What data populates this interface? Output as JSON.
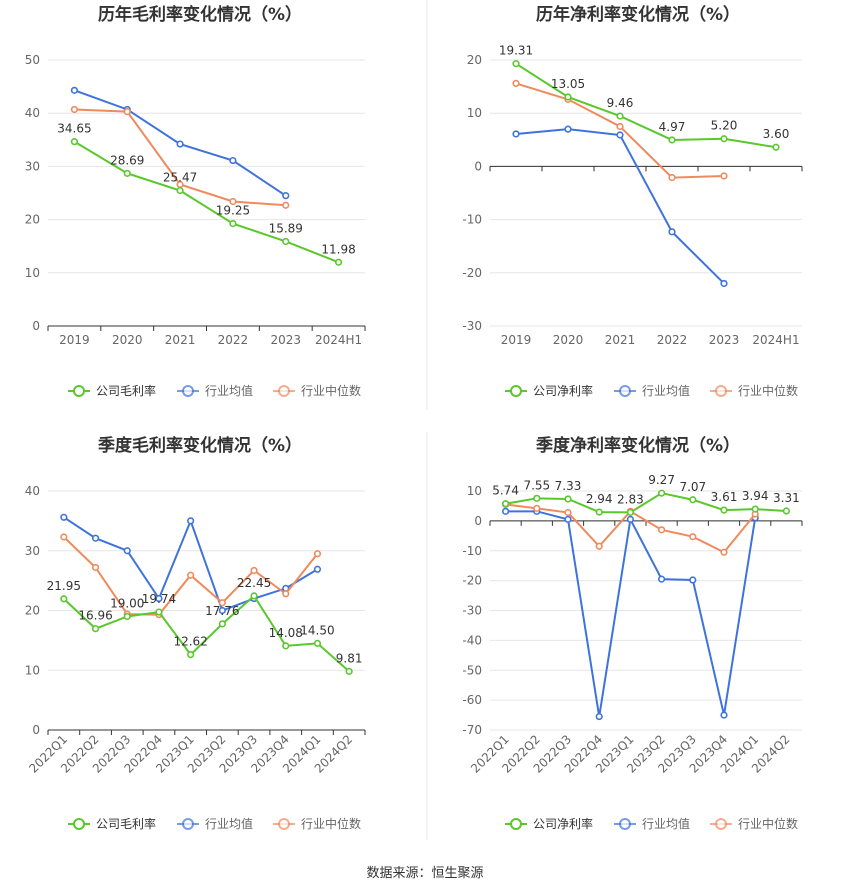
{
  "colors": {
    "company": "#5ac72b",
    "industry_avg": "#3e73dd",
    "industry_median": "#f08a5d",
    "grid": "#e6e6e6",
    "axis": "#333333",
    "divider": "#e8e8e8"
  },
  "source": "数据来源：恒生聚源",
  "chart_data": [
    {
      "type": "line",
      "title": "历年毛利率变化情况（%）",
      "categories": [
        "2019",
        "2020",
        "2021",
        "2022",
        "2023",
        "2024H1"
      ],
      "ylim": [
        0,
        50
      ],
      "yticks": [
        0,
        10,
        20,
        30,
        40,
        50
      ],
      "grid": true,
      "legend_position": "bottom",
      "series": [
        {
          "name": "公司毛利率",
          "role": "company",
          "values": [
            34.65,
            28.69,
            25.47,
            19.25,
            15.89,
            11.98
          ],
          "labels": [
            "34.65",
            "28.69",
            "25.47",
            "19.25",
            "15.89",
            "11.98"
          ]
        },
        {
          "name": "行业均值",
          "role": "industry_avg",
          "values": [
            44.3,
            40.7,
            34.2,
            31.1,
            24.5,
            null
          ]
        },
        {
          "name": "行业中位数",
          "role": "industry_median",
          "values": [
            40.7,
            40.3,
            26.6,
            23.4,
            22.7,
            null
          ]
        }
      ]
    },
    {
      "type": "line",
      "title": "历年净利率变化情况（%）",
      "categories": [
        "2019",
        "2020",
        "2021",
        "2022",
        "2023",
        "2024H1"
      ],
      "ylim": [
        -30,
        20
      ],
      "yticks": [
        -30,
        -20,
        -10,
        0,
        10,
        20
      ],
      "grid": true,
      "legend_position": "bottom",
      "series": [
        {
          "name": "公司净利率",
          "role": "company",
          "values": [
            19.31,
            13.05,
            9.46,
            4.97,
            5.2,
            3.6
          ],
          "labels": [
            "19.31",
            "13.05",
            "9.46",
            "4.97",
            "5.20",
            "3.60"
          ]
        },
        {
          "name": "行业均值",
          "role": "industry_avg",
          "values": [
            6.1,
            7.0,
            5.9,
            -12.3,
            -22.0,
            null
          ]
        },
        {
          "name": "行业中位数",
          "role": "industry_median",
          "values": [
            15.6,
            12.6,
            7.5,
            -2.1,
            -1.8,
            null
          ]
        }
      ]
    },
    {
      "type": "line",
      "title": "季度毛利率变化情况（%）",
      "categories": [
        "2022Q1",
        "2022Q2",
        "2022Q3",
        "2022Q4",
        "2023Q1",
        "2023Q2",
        "2023Q3",
        "2023Q4",
        "2024Q1",
        "2024Q2"
      ],
      "ylim": [
        0,
        40
      ],
      "yticks": [
        0,
        10,
        20,
        30,
        40
      ],
      "grid": true,
      "legend_position": "bottom",
      "series": [
        {
          "name": "公司毛利率",
          "role": "company",
          "values": [
            21.95,
            16.96,
            19.0,
            19.74,
            12.62,
            17.76,
            22.45,
            14.08,
            14.5,
            9.81
          ],
          "labels": [
            "21.95",
            "16.96",
            "19.00",
            "19.74",
            "12.62",
            "17.76",
            "22.45",
            "14.08",
            "14.50",
            "9.81"
          ]
        },
        {
          "name": "行业均值",
          "role": "industry_avg",
          "values": [
            35.6,
            32.1,
            30.0,
            22.0,
            35.0,
            20.0,
            22.0,
            23.7,
            26.9,
            null
          ]
        },
        {
          "name": "行业中位数",
          "role": "industry_median",
          "values": [
            32.3,
            27.2,
            19.4,
            19.3,
            25.9,
            21.3,
            26.7,
            22.8,
            29.5,
            null
          ]
        }
      ]
    },
    {
      "type": "line",
      "title": "季度净利率变化情况（%）",
      "categories": [
        "2022Q1",
        "2022Q2",
        "2022Q3",
        "2022Q4",
        "2023Q1",
        "2023Q2",
        "2023Q3",
        "2023Q4",
        "2024Q1",
        "2024Q2"
      ],
      "ylim": [
        -70,
        10
      ],
      "yticks": [
        -70,
        -60,
        -50,
        -40,
        -30,
        -20,
        -10,
        0,
        10
      ],
      "grid": true,
      "legend_position": "bottom",
      "series": [
        {
          "name": "公司净利率",
          "role": "company",
          "values": [
            5.74,
            7.55,
            7.33,
            2.94,
            2.83,
            9.27,
            7.07,
            3.61,
            3.94,
            3.31
          ],
          "labels": [
            "5.74",
            "7.55",
            "7.33",
            "2.94",
            "2.83",
            "9.27",
            "7.07",
            "3.61",
            "3.94",
            "3.31"
          ]
        },
        {
          "name": "行业均值",
          "role": "industry_avg",
          "values": [
            3.2,
            3.2,
            0.5,
            -65.5,
            0.5,
            -19.5,
            -19.8,
            -65.0,
            1.0,
            null
          ]
        },
        {
          "name": "行业中位数",
          "role": "industry_median",
          "values": [
            5.5,
            4.2,
            2.8,
            -8.5,
            3.2,
            -3.0,
            -5.3,
            -10.5,
            2.3,
            null
          ]
        }
      ]
    }
  ]
}
